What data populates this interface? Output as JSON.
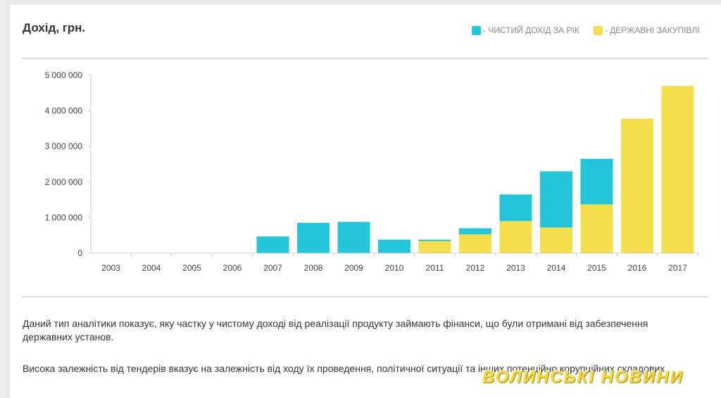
{
  "header": {
    "title": "Дохід, грн."
  },
  "legend": [
    {
      "label": "- ЧИСТИЙ ДОХІД ЗА РІК",
      "color": "#26c6da"
    },
    {
      "label": "- ДЕРЖАВНІ ЗАКУПІВЛІ",
      "color": "#f5df4d"
    }
  ],
  "chart_data": {
    "type": "bar",
    "categories": [
      "2003",
      "2004",
      "2005",
      "2006",
      "2007",
      "2008",
      "2009",
      "2010",
      "2011",
      "2012",
      "2013",
      "2014",
      "2015",
      "2016",
      "2017"
    ],
    "series": [
      {
        "name": "- ЧИСТИЙ ДОХІД ЗА РІК",
        "color": "#26c6da",
        "values": [
          0,
          0,
          0,
          0,
          470000,
          850000,
          880000,
          380000,
          380000,
          700000,
          1650000,
          2300000,
          2650000,
          0,
          0
        ]
      },
      {
        "name": "- ДЕРЖАВНІ ЗАКУПІВЛІ",
        "color": "#f5df4d",
        "values": [
          0,
          0,
          0,
          0,
          0,
          0,
          0,
          0,
          340000,
          530000,
          900000,
          720000,
          1370000,
          3780000,
          4700000
        ]
      }
    ],
    "layout": "overlapped",
    "yticks": [
      "0",
      "1 000 000",
      "2 000 000",
      "3 000 000",
      "4 000 000",
      "5 000 000"
    ],
    "ylim": [
      0,
      5000000
    ],
    "xlabel": "",
    "ylabel": "",
    "grid": false
  },
  "description": {
    "paragraph1": "Даний тип аналітики показує, яку частку у чистому доході від реалізації продукту займають фінанси, що були отримані від забезпечення державних установ.",
    "paragraph2": "Висока залежність від тендерів вказує на залежність від ходу їх проведення, політичної ситуації та інших потенційно корупційних складових."
  },
  "watermark": "ВОЛИНСЬКІ НОВИНИ"
}
